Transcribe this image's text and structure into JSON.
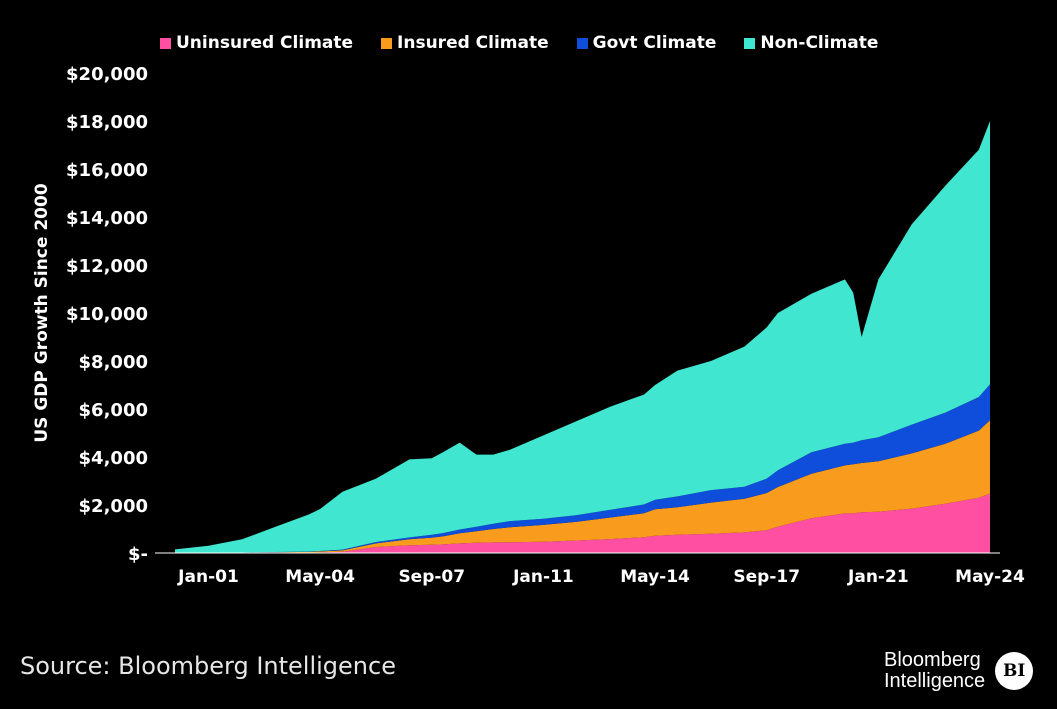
{
  "chart_data": {
    "type": "area",
    "stacked": true,
    "ylabel": "US GDP Growth Since 2000",
    "ylim": [
      0,
      20000
    ],
    "yticks": [
      0,
      2000,
      4000,
      6000,
      8000,
      10000,
      12000,
      14000,
      16000,
      18000,
      20000
    ],
    "ytick_labels": [
      "$-",
      "$2,000",
      "$4,000",
      "$6,000",
      "$8,000",
      "$10,000",
      "$12,000",
      "$14,000",
      "$16,000",
      "$18,000",
      "$20,000"
    ],
    "x_tick_labels": [
      "Jan-01",
      "May-04",
      "Sep-07",
      "Jan-11",
      "May-14",
      "Sep-17",
      "Jan-21",
      "May-24"
    ],
    "legend_position": "top",
    "x": [
      "Jan-00",
      "Jan-01",
      "Jan-02",
      "Jan-03",
      "Jan-04",
      "May-04",
      "Jan-05",
      "Jan-06",
      "Jan-07",
      "Sep-07",
      "Jan-08",
      "Jul-08",
      "Jan-09",
      "Jul-09",
      "Jan-10",
      "Jan-11",
      "Jan-12",
      "Jan-13",
      "Jan-14",
      "May-14",
      "Jan-15",
      "Jan-16",
      "Jan-17",
      "Sep-17",
      "Jan-18",
      "Jan-19",
      "Jan-20",
      "Apr-20",
      "Jul-20",
      "Jan-21",
      "Jan-22",
      "Jan-23",
      "Jan-24",
      "May-24"
    ],
    "series": [
      {
        "name": "Uninsured Climate",
        "color": "#ff4fa3",
        "values": [
          0,
          0,
          5,
          10,
          15,
          25,
          50,
          250,
          320,
          340,
          360,
          400,
          430,
          440,
          450,
          470,
          520,
          580,
          660,
          720,
          760,
          800,
          860,
          950,
          1100,
          1450,
          1650,
          1650,
          1700,
          1720,
          1850,
          2050,
          2300,
          2480
        ]
      },
      {
        "name": "Insured Climate",
        "color": "#f99b1c",
        "values": [
          0,
          0,
          10,
          20,
          30,
          40,
          60,
          150,
          250,
          300,
          330,
          420,
          480,
          560,
          620,
          700,
          780,
          900,
          1000,
          1100,
          1150,
          1300,
          1400,
          1550,
          1650,
          1850,
          2000,
          2050,
          2050,
          2100,
          2300,
          2500,
          2800,
          3050
        ]
      },
      {
        "name": "Govt Climate",
        "color": "#0f4ddb",
        "values": [
          0,
          0,
          5,
          10,
          15,
          20,
          30,
          60,
          80,
          120,
          140,
          160,
          180,
          220,
          260,
          260,
          280,
          320,
          360,
          400,
          450,
          520,
          500,
          600,
          700,
          900,
          900,
          900,
          950,
          1000,
          1200,
          1300,
          1400,
          1500
        ]
      },
      {
        "name": "Non-Climate",
        "color": "#40e6cf",
        "values": [
          150,
          300,
          550,
          1050,
          1550,
          1750,
          2410,
          2640,
          3250,
          3190,
          3370,
          3620,
          3010,
          2880,
          2970,
          3470,
          3920,
          4300,
          4580,
          4780,
          5240,
          5380,
          5840,
          6300,
          6550,
          6600,
          6850,
          6250,
          4300,
          6580,
          8350,
          9450,
          10300,
          10970
        ]
      }
    ]
  },
  "legend": [
    {
      "label": "Uninsured Climate",
      "color": "#ff4fa3"
    },
    {
      "label": "Insured Climate",
      "color": "#f99b1c"
    },
    {
      "label": "Govt Climate",
      "color": "#0f4ddb"
    },
    {
      "label": "Non-Climate",
      "color": "#40e6cf"
    }
  ],
  "source": "Source: Bloomberg Intelligence",
  "logo": {
    "line1": "Bloomberg",
    "line2": "Intelligence",
    "badge": "BI"
  }
}
